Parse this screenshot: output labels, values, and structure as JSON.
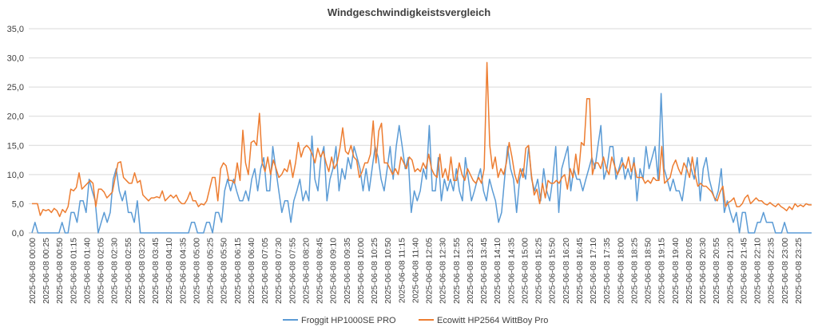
{
  "chart_data": {
    "type": "line",
    "title": "Windgeschwindigkeistsvergleich",
    "xlabel": "",
    "ylabel": "",
    "ylim": [
      0,
      35
    ],
    "yticks": [
      "0,0",
      "5,0",
      "10,0",
      "15,0",
      "20,0",
      "25,0",
      "30,0",
      "35,0"
    ],
    "grid": "horizontal",
    "legend": "bottom",
    "x_labels": [
      "2025-06-08 00:00",
      "2025-06-08 00:25",
      "2025-06-08 00:50",
      "2025-06-08 01:15",
      "2025-06-08 01:40",
      "2025-06-08 02:05",
      "2025-06-08 02:30",
      "2025-06-08 02:55",
      "2025-06-08 03:20",
      "2025-06-08 03:45",
      "2025-06-08 04:10",
      "2025-06-08 04:35",
      "2025-06-08 05:00",
      "2025-06-08 05:25",
      "2025-06-08 05:50",
      "2025-06-08 06:15",
      "2025-06-08 06:40",
      "2025-06-08 07:05",
      "2025-06-08 07:30",
      "2025-06-08 07:55",
      "2025-06-08 08:20",
      "2025-06-08 08:45",
      "2025-06-08 09:10",
      "2025-06-08 09:35",
      "2025-06-08 10:00",
      "2025-06-08 10:25",
      "2025-06-08 10:50",
      "2025-06-08 11:15",
      "2025-06-08 11:40",
      "2025-06-08 12:05",
      "2025-06-08 12:30",
      "2025-06-08 12:55",
      "2025-06-08 13:20",
      "2025-06-08 13:45",
      "2025-06-08 14:10",
      "2025-06-08 14:35",
      "2025-06-08 15:00",
      "2025-06-08 15:25",
      "2025-06-08 15:50",
      "2025-06-08 16:20",
      "2025-06-08 16:45",
      "2025-06-08 17:10",
      "2025-06-08 17:35",
      "2025-06-08 18:00",
      "2025-06-08 18:25",
      "2025-06-08 18:50",
      "2025-06-08 19:15",
      "2025-06-08 19:40",
      "2025-06-08 20:05",
      "2025-06-08 20:30",
      "2025-06-08 20:55",
      "2025-06-08 21:20",
      "2025-06-08 21:45",
      "2025-06-08 22:10",
      "2025-06-08 22:35",
      "2025-06-08 23:00",
      "2025-06-08 23:25"
    ],
    "series": [
      {
        "name": "Froggit HP1000SE PRO",
        "color": "#5b9bd5",
        "values": [
          0,
          1.8,
          0,
          0,
          0,
          0,
          0,
          0,
          0,
          0,
          1.8,
          0,
          0,
          3.5,
          3.5,
          1.8,
          5.5,
          5.5,
          3.5,
          9.2,
          7.2,
          5.5,
          0,
          1.8,
          3.5,
          1.8,
          3.5,
          9.2,
          11,
          7.2,
          5.5,
          7.2,
          3.5,
          3.5,
          1.8,
          5.5,
          0,
          0,
          0,
          0,
          0,
          0,
          0,
          0,
          0,
          0,
          0,
          0,
          0,
          0,
          0,
          0,
          0,
          1.8,
          1.8,
          0,
          0,
          0,
          1.8,
          1.8,
          0,
          3.5,
          3.5,
          1.8,
          7.2,
          9.2,
          7.2,
          9.2,
          7.2,
          5.5,
          5.5,
          7.2,
          5.5,
          9.2,
          11,
          7.2,
          11,
          12.9,
          7.2,
          7.2,
          14.8,
          11,
          7.2,
          3.5,
          5.5,
          5.5,
          1.8,
          5.5,
          7.2,
          9.2,
          5.5,
          7.2,
          5.5,
          16.6,
          9.2,
          7.2,
          12.9,
          14.8,
          5.5,
          9.2,
          11,
          14.8,
          7.2,
          11,
          9.2,
          12.9,
          11,
          14.8,
          12.9,
          11,
          7.2,
          11,
          7.2,
          11,
          14.8,
          12.9,
          9.2,
          7.2,
          11,
          14.8,
          9.2,
          14.8,
          18.4,
          14.8,
          11,
          12.9,
          3.5,
          7.2,
          5.5,
          7.2,
          11,
          9.2,
          18.4,
          7.2,
          7.2,
          12.9,
          5.5,
          9.2,
          7.2,
          9.2,
          7.2,
          11,
          7.2,
          5.5,
          12.9,
          9.2,
          5.5,
          7.2,
          9.2,
          11,
          7.2,
          5.5,
          9.2,
          7.2,
          5.5,
          1.8,
          3.5,
          9.2,
          14.8,
          11,
          9.2,
          3.5,
          9.2,
          11,
          9.2,
          14.8,
          9.2,
          7.2,
          9.2,
          5.5,
          11,
          7.2,
          5.5,
          9.2,
          14.8,
          3.5,
          11,
          12.9,
          14.8,
          7.2,
          11,
          9.2,
          9.2,
          7.2,
          9.2,
          11,
          12.9,
          11,
          14.8,
          18.4,
          9.2,
          11,
          14.8,
          14.8,
          9.2,
          11,
          12.9,
          9.2,
          11,
          9.2,
          12.9,
          5.5,
          11,
          9.2,
          14.8,
          11,
          12.9,
          14.8,
          9.2,
          23.9,
          11,
          9.2,
          7.2,
          9.2,
          7.2,
          7.2,
          5.5,
          9.2,
          12.9,
          11,
          9.2,
          12.9,
          5.5,
          11,
          12.9,
          9.2,
          7.2,
          5.5,
          7.2,
          11,
          3.5,
          5.5,
          3.5,
          1.8,
          3.5,
          0,
          3.5,
          3.5,
          0,
          0,
          0,
          1.8,
          1.8,
          3.5,
          1.8,
          1.8,
          1.8,
          0,
          0,
          0,
          1.8,
          0,
          0,
          0,
          0,
          0,
          0,
          0,
          0,
          0
        ]
      },
      {
        "name": "Ecowitt HP2564 WittBoy Pro",
        "color": "#ed7d31",
        "values": [
          5,
          5,
          5,
          3,
          4,
          3.8,
          4,
          3.5,
          4.2,
          3.8,
          2.8,
          4,
          3.5,
          4.5,
          7.5,
          7.2,
          7.8,
          10.3,
          7.5,
          8,
          8.5,
          9,
          8.5,
          4.5,
          7.5,
          7.5,
          7,
          6,
          6.5,
          7,
          9.5,
          12,
          12.2,
          9.5,
          9,
          8.5,
          8.5,
          10.3,
          8.6,
          9,
          6.5,
          6,
          5.5,
          6,
          6,
          6.2,
          6,
          7.2,
          5.5,
          6,
          6.5,
          6,
          6.5,
          5.5,
          5,
          5,
          5.8,
          7,
          5.5,
          5.5,
          4.5,
          5,
          4.8,
          5.5,
          7.5,
          9.5,
          9.5,
          5.5,
          11,
          12,
          11.5,
          9,
          9,
          8.5,
          12,
          9,
          17.6,
          12,
          10,
          15.5,
          15.8,
          15,
          20.5,
          12,
          10.5,
          13,
          10,
          12.5,
          11,
          9.5,
          10,
          11,
          10.5,
          12.5,
          9.5,
          12,
          15.5,
          13,
          14.5,
          15,
          14.5,
          13.5,
          12,
          14.5,
          13,
          14,
          12,
          10.5,
          13,
          11,
          12,
          14.5,
          18,
          14,
          13.5,
          15,
          13,
          12.5,
          9.5,
          10.5,
          12,
          12,
          13.5,
          19.2,
          12,
          17.5,
          18.8,
          12,
          12,
          11,
          10,
          11,
          10,
          13,
          12,
          11,
          13,
          12.5,
          10.5,
          11,
          10.5,
          12,
          11,
          13.5,
          11,
          10,
          9.5,
          13.5,
          9.5,
          11,
          9,
          13,
          9,
          9,
          12,
          10,
          9,
          11,
          10,
          9,
          8.5,
          9.5,
          8.5,
          11,
          29.2,
          15,
          11,
          13,
          9.5,
          11,
          10,
          12,
          15.5,
          13,
          10,
          8.5,
          11,
          9.5,
          14.5,
          15,
          10,
          6.5,
          7.5,
          5,
          8.5,
          6,
          9,
          8.5,
          8.5,
          9,
          8.5,
          9.5,
          10,
          7.5,
          11,
          9.5,
          13.5,
          10,
          15.5,
          15,
          23,
          23,
          10,
          12,
          12,
          11,
          13,
          11,
          10,
          13,
          11.5,
          10,
          11,
          12,
          11,
          13,
          10.5,
          12,
          9.5,
          9.5,
          9.5,
          8.5,
          9,
          8.5,
          9.5,
          9,
          9,
          14.8,
          8.5,
          9,
          9.5,
          11.5,
          12.5,
          11,
          10,
          12,
          11,
          9.5,
          13,
          10,
          8,
          8.5,
          8,
          8,
          7.5,
          7,
          6,
          5.5,
          7,
          8,
          4.5,
          5.2,
          5.5,
          6,
          4.5,
          4.5,
          5,
          6,
          6.5,
          5,
          5.5,
          6,
          5.5,
          5.5,
          5,
          4.8,
          5.2,
          4.8,
          4.5,
          5,
          4.5,
          4.2,
          3.8,
          4.5,
          4,
          5,
          4.5,
          4.8,
          4.5,
          5,
          4.8,
          4.8
        ]
      }
    ]
  }
}
